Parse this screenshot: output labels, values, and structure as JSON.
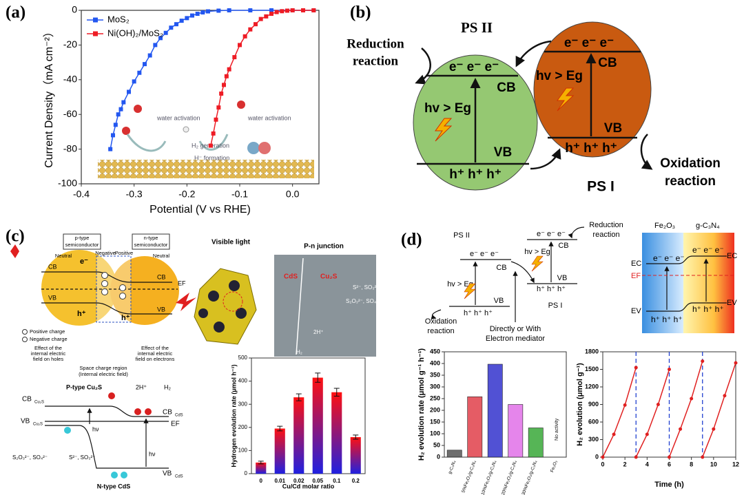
{
  "chart_data": [
    {
      "type": "line",
      "xlabel": "Potential (V vs RHE)",
      "ylabel": "Current Density（mA cm⁻²）",
      "xlim": [
        -0.4,
        0.05
      ],
      "xticks": [
        -0.4,
        -0.3,
        -0.2,
        -0.1,
        {
          "value": 0,
          "label": "0.0"
        }
      ],
      "ylim": [
        -100,
        0
      ],
      "yticks": [
        0,
        -20,
        -40,
        -60,
        -80,
        -100
      ],
      "legend": "upper left",
      "series": [
        {
          "name": "MoS₂",
          "color": "#2357f0",
          "x": [
            -0.345,
            -0.34,
            -0.335,
            -0.33,
            -0.325,
            -0.32,
            -0.31,
            -0.3,
            -0.29,
            -0.28,
            -0.27,
            -0.26,
            -0.25,
            -0.24,
            -0.23,
            -0.22,
            -0.21,
            -0.2,
            -0.19,
            -0.18,
            -0.17,
            -0.16,
            -0.14,
            -0.12,
            -0.08,
            -0.04,
            0,
            0.04
          ],
          "values": [
            -80,
            -72,
            -66,
            -60,
            -57,
            -53,
            -47,
            -41,
            -36,
            -31,
            -26,
            -20,
            -16,
            -13,
            -10,
            -8,
            -6,
            -4.5,
            -3,
            -2,
            -1.2,
            -0.6,
            -0.2,
            0,
            0,
            0,
            0,
            0
          ]
        },
        {
          "name": "Ni(OH)₂/MoS₂",
          "color": "#ee1c25",
          "x": [
            -0.155,
            -0.15,
            -0.145,
            -0.14,
            -0.135,
            -0.13,
            -0.125,
            -0.12,
            -0.11,
            -0.1,
            -0.09,
            -0.08,
            -0.07,
            -0.06,
            -0.05,
            -0.04,
            -0.03,
            -0.02,
            -0.01,
            0,
            0.02,
            0.04
          ],
          "values": [
            -78,
            -71,
            -63,
            -56,
            -48,
            -43,
            -38,
            -34,
            -27,
            -20,
            -15,
            -11,
            -8,
            -5,
            -3.5,
            -2,
            -1,
            -0.5,
            -0.2,
            0,
            0,
            0
          ]
        }
      ],
      "annotations": [
        "water activation",
        "H₂ generation",
        "H⁻ formation",
        "water activation"
      ]
    },
    {
      "type": "bar",
      "xlabel": "Cu/Cd molar ratio",
      "ylabel": "Hydrogen evolution rate (μmol h⁻¹)",
      "categories": [
        "0",
        "0.01",
        "0.02",
        "0.05",
        "0.1",
        "0.2"
      ],
      "values": [
        48,
        195,
        330,
        415,
        352,
        158
      ],
      "errors": [
        6,
        10,
        15,
        20,
        17,
        9
      ],
      "gradient": [
        "#ff1010",
        "#2020e0"
      ],
      "ylim": [
        0,
        500
      ],
      "yticks": [
        0,
        100,
        200,
        300,
        400,
        500
      ]
    },
    {
      "type": "bar",
      "ylabel": "H₂ evolution rate (μmol g⁻¹ h⁻¹)",
      "categories": [
        "g-C₃N₄",
        "5%Fe₂O₃/g-C₃N₄",
        "10%Fe₂O₃/g-C₃N₄",
        "20%Fe₂O₃/g-C₃N₄",
        "30%Fe₂O₃/g-C₃N₄",
        "Fe₂O₃"
      ],
      "values": [
        30,
        258,
        397,
        225,
        125,
        0
      ],
      "colors": [
        "#555555",
        "#e0404a",
        "#3333cc",
        "#e070e8",
        "#38a838",
        "#777777"
      ],
      "ylim": [
        0,
        450
      ],
      "yticks": [
        0,
        50,
        100,
        150,
        200,
        250,
        300,
        350,
        400,
        450
      ],
      "annotations": [
        "No activity"
      ]
    },
    {
      "type": "line",
      "xlabel": "Time (h)",
      "ylabel": "H₂ evolution (μmol g⁻¹)",
      "xlim": [
        0,
        12
      ],
      "xticks": [
        0,
        2,
        4,
        6,
        8,
        10,
        12
      ],
      "ylim": [
        0,
        1800
      ],
      "yticks": [
        0,
        300,
        600,
        900,
        1200,
        1500,
        1800
      ],
      "vlines": [
        3,
        6,
        9
      ],
      "series": [
        {
          "color": "#e02020",
          "x": [
            0,
            1,
            2,
            3
          ],
          "values": [
            0,
            390,
            890,
            1530
          ]
        },
        {
          "color": "#e02020",
          "x": [
            3,
            4,
            5,
            6
          ],
          "values": [
            0,
            390,
            900,
            1500
          ]
        },
        {
          "color": "#e02020",
          "x": [
            6,
            7,
            8,
            9
          ],
          "values": [
            0,
            480,
            1000,
            1640
          ]
        },
        {
          "color": "#e02020",
          "x": [
            9,
            10,
            11,
            12
          ],
          "values": [
            0,
            480,
            1050,
            1610
          ]
        }
      ]
    }
  ],
  "panel_labels": [
    "(a)",
    "(b)",
    "(c)",
    "(d)"
  ],
  "diagram_b": {
    "ps2": "PS II",
    "ps1": "PS I",
    "reduction": [
      "Reduction",
      "reaction"
    ],
    "oxidation": [
      "Oxidation",
      "reaction"
    ],
    "electrons": "e⁻ e⁻ e⁻",
    "holes": "h⁺ h⁺ h⁺",
    "cb": "CB",
    "vb": "VB",
    "excitation": "hv > Eg"
  },
  "diagram_c": {
    "p_type": [
      "p-type",
      "semiconductor"
    ],
    "n_type": [
      "n-type",
      "semiconductor"
    ],
    "neutral": "Neutral",
    "negative": "Negative",
    "positive": "Positive",
    "cb": "CB",
    "vb": "VB",
    "ef": "EF",
    "electron": "e⁻",
    "hole": "h⁺",
    "legend_pos": "Positive charge",
    "legend_neg": "Negative charge",
    "effect_holes": [
      "Effect of the",
      "internal electric",
      "field on holes"
    ],
    "effect_electrons": [
      "Effect of the",
      "internal electric",
      "field on electrons"
    ],
    "space_charge": [
      "Space charge region",
      "(Internal electric field)"
    ],
    "visible_light": "Visible light",
    "pn": "P-n junction",
    "cds": "CdS",
    "cu2s": "Cu₂S",
    "donors": "S²⁻, SO₃²⁻",
    "products": "S₂O₃²⁻, SO₄²⁻",
    "protons": "2H⁺",
    "h2": "H₂",
    "p_cu2s": "P-type Cu₂S",
    "n_cds": "N-type CdS",
    "cb_cu2s": [
      "CB",
      "Cu₂S"
    ],
    "vb_cu2s": [
      "VB",
      "Cu₂S"
    ],
    "cb_cds": [
      "CB",
      "CdS"
    ],
    "vb_cds": [
      "VB",
      "CdS"
    ],
    "hv": "hν"
  },
  "diagram_d": {
    "ps2": "PS II",
    "ps1": "PS I",
    "reduction": [
      "Reduction",
      "reaction"
    ],
    "oxidation": [
      "Oxidation",
      "reaction"
    ],
    "mediator": [
      "Directly or With",
      "Electron mediator"
    ],
    "electrons": "e⁻ e⁻ e⁻",
    "holes": "h⁺ h⁺ h⁺",
    "cb": "CB",
    "vb": "VB",
    "excitation": "hv > Eg",
    "fe2o3": "Fe₂O₃",
    "gcn": "g-C₃N₄",
    "ec": "EC",
    "ef": "EF",
    "ev": "EV"
  }
}
